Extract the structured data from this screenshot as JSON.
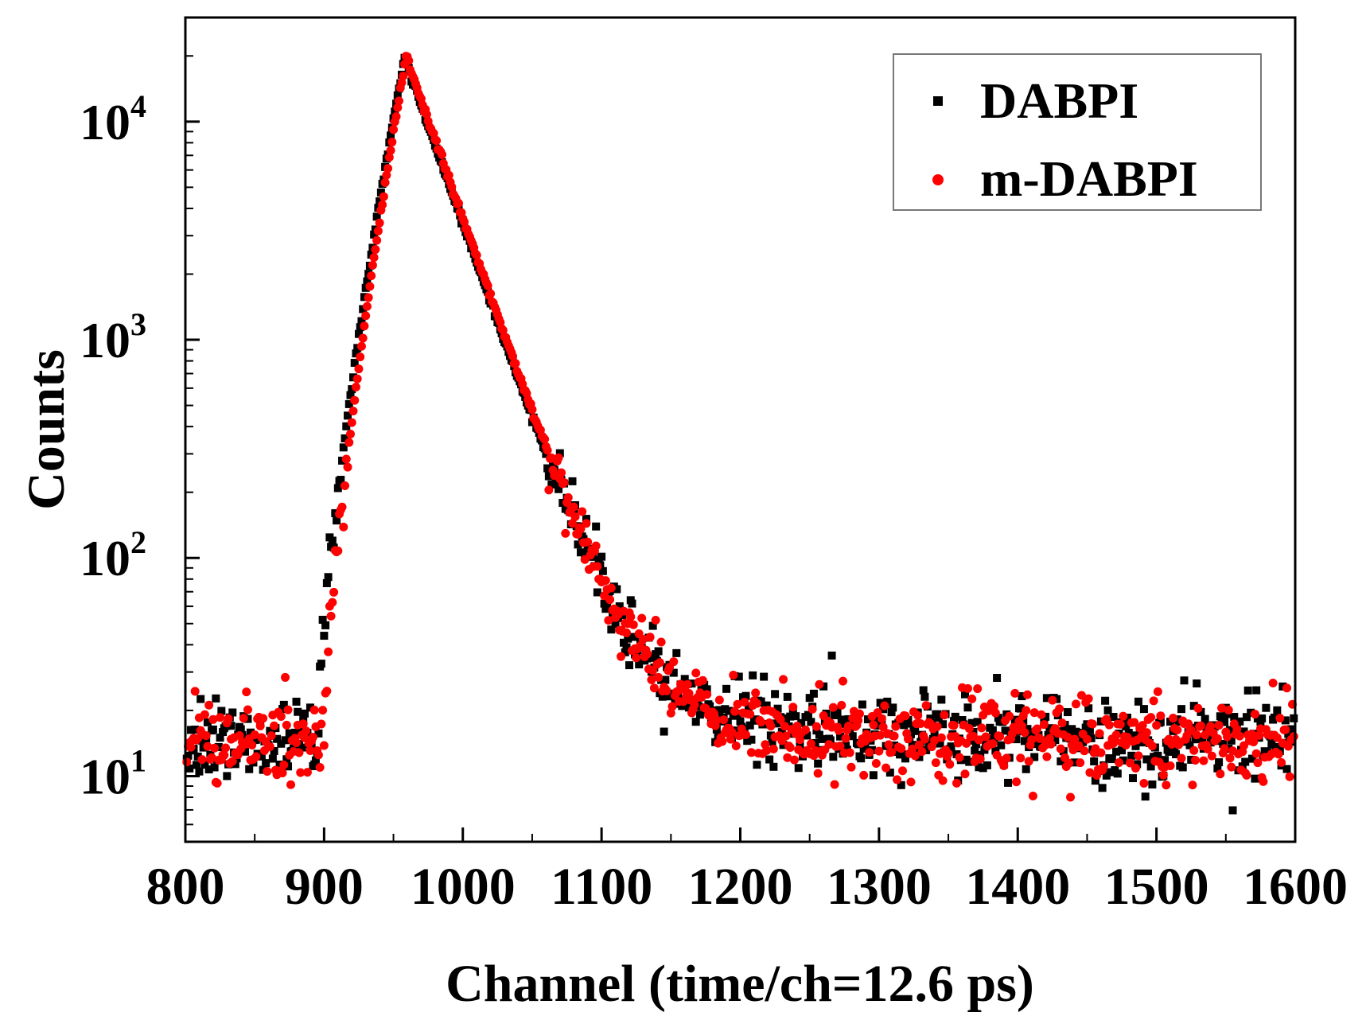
{
  "chart_data": {
    "type": "scatter",
    "title": "",
    "xlabel": "Channel (time/ch=12.6 ps)",
    "ylabel": "Counts",
    "xlim": [
      800,
      1600
    ],
    "ylim": [
      5,
      30000
    ],
    "yscale": "log",
    "grid": false,
    "legend_position": "top-right",
    "x_ticks": [
      800,
      900,
      1000,
      1100,
      1200,
      1300,
      1400,
      1500,
      1600
    ],
    "x_tick_labels": [
      "800",
      "900",
      "1000",
      "1100",
      "1200",
      "1300",
      "1400",
      "1500",
      "1600"
    ],
    "y_ticks": [
      10,
      100,
      1000,
      10000
    ],
    "y_tick_labels": [
      {
        "base": "10",
        "exp": "1"
      },
      {
        "base": "10",
        "exp": "2"
      },
      {
        "base": "10",
        "exp": "3"
      },
      {
        "base": "10",
        "exp": "4"
      }
    ],
    "series": [
      {
        "name": "DABPI",
        "marker": "square",
        "color": "#000000",
        "baseline": 14,
        "noise": 0.22,
        "rise_start": 895,
        "peak_channel": 958,
        "peak_counts": 19500,
        "decay_tau_ch": 24,
        "tail_tau_ch": 120,
        "tail_amplitude": 30
      },
      {
        "name": "m-DABPI",
        "marker": "circle",
        "color": "#ff0000",
        "baseline": 14,
        "noise": 0.22,
        "rise_start": 900,
        "peak_channel": 959,
        "peak_counts": 19800,
        "decay_tau_ch": 24,
        "tail_tau_ch": 90,
        "tail_amplitude": 45
      }
    ]
  }
}
